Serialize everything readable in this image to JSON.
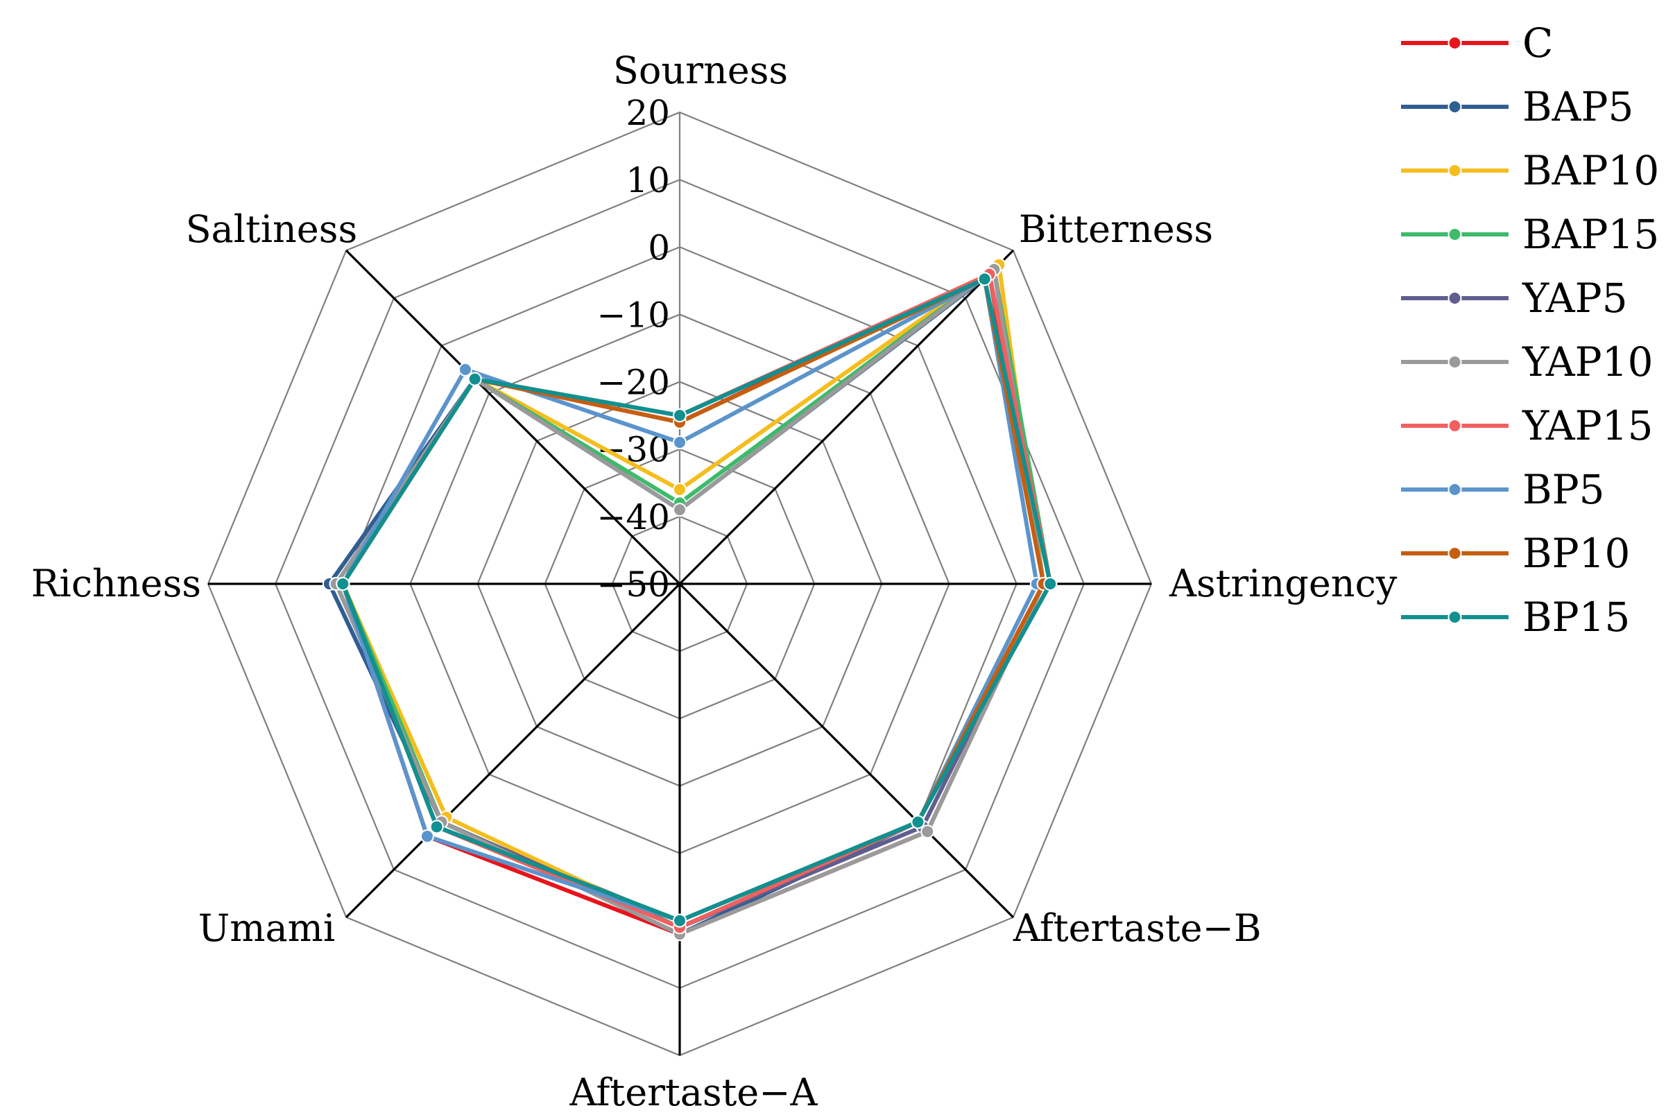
{
  "chart_data": {
    "type": "radar",
    "title": "",
    "axes": [
      "Sourness",
      "Bitterness",
      "Astringency",
      "Aftertaste−B",
      "Aftertaste−A",
      "Umami",
      "Richness",
      "Saltiness"
    ],
    "rlim": [
      -50,
      20
    ],
    "ticks": [
      "20",
      "10",
      "0",
      "−10",
      "−20",
      "−30",
      "−40",
      "−50"
    ],
    "tick_values": [
      20,
      10,
      0,
      -10,
      -20,
      -30,
      -40,
      -50
    ],
    "grid": true,
    "legend_position": "right",
    "series": [
      {
        "name": "C",
        "color": "#e8141b",
        "values": [
          -26,
          15,
          4,
          2,
          2,
          3,
          0,
          -7
        ]
      },
      {
        "name": "BAP5",
        "color": "#2f5e92",
        "values": [
          -39,
          15,
          5,
          0,
          2,
          0,
          2,
          -7
        ]
      },
      {
        "name": "BAP10",
        "color": "#f5bd1d",
        "values": [
          -36,
          17,
          4,
          0,
          1,
          -1,
          0,
          -7
        ]
      },
      {
        "name": "BAP15",
        "color": "#3dbb6b",
        "values": [
          -38,
          16,
          5,
          0,
          1,
          0,
          0,
          -7
        ]
      },
      {
        "name": "YAP5",
        "color": "#5e5e8f",
        "values": [
          -39,
          16,
          4,
          1,
          1,
          0,
          1,
          -7
        ]
      },
      {
        "name": "YAP10",
        "color": "#9a9a9a",
        "values": [
          -39,
          16,
          4,
          2,
          2,
          0,
          1,
          -7
        ]
      },
      {
        "name": "YAP15",
        "color": "#f06060",
        "values": [
          -25,
          15,
          5,
          0,
          1,
          1,
          0,
          -7
        ]
      },
      {
        "name": "BP5",
        "color": "#5b94cc",
        "values": [
          -29,
          14,
          3,
          0,
          0,
          3,
          0,
          -5
        ]
      },
      {
        "name": "BP10",
        "color": "#c65e10",
        "values": [
          -26,
          14,
          4,
          0,
          0,
          1,
          0,
          -7
        ]
      },
      {
        "name": "BP15",
        "color": "#109090",
        "values": [
          -25,
          14,
          5,
          0,
          0,
          1,
          0,
          -7
        ]
      }
    ]
  }
}
